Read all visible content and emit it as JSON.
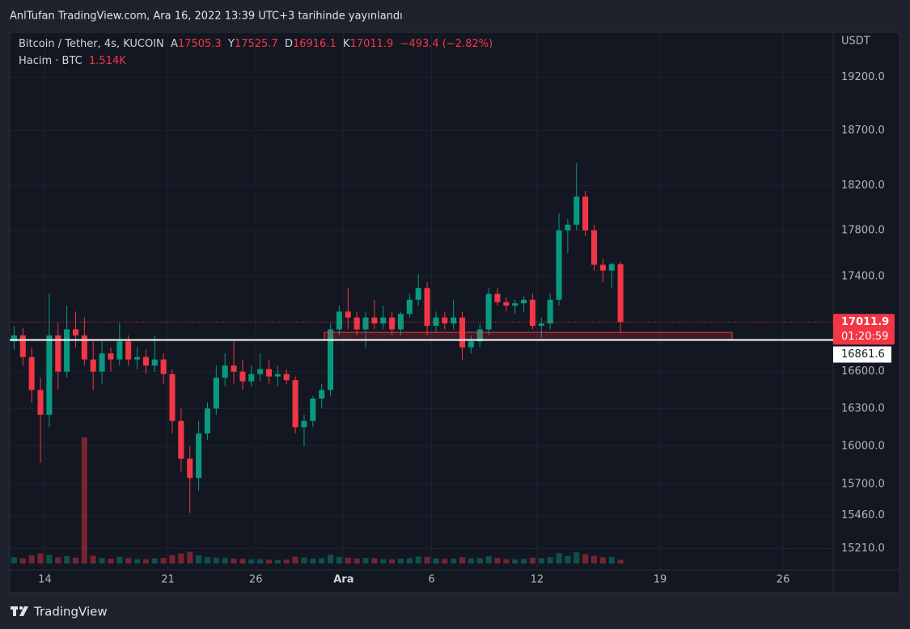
{
  "header": {
    "title": "AnlTufan TradingView.com, Ara 16, 2022 13:39 UTC+3 tarihinde yayınlandı"
  },
  "footer": {
    "brand": "TradingView"
  },
  "chart_data": {
    "type": "candlestick",
    "legend": {
      "symbol": "Bitcoin / Tether, 4s, KUCOIN",
      "open_label": "A",
      "open": 17505.3,
      "high_label": "Y",
      "high": 17525.7,
      "low_label": "D",
      "low": 16916.1,
      "close_label": "K",
      "close": 17011.9,
      "change": "−493.4 (−2.82%)",
      "volume_label": "Hacim · BTC",
      "volume_value": "1.514K"
    },
    "y_unit": "USDT",
    "log_scale": true,
    "ylim": [
      15050,
      19630
    ],
    "yticks": [
      {
        "value": 19200,
        "label": "19200.0"
      },
      {
        "value": 18700,
        "label": "18700.0"
      },
      {
        "value": 18200,
        "label": "18200.0"
      },
      {
        "value": 17800,
        "label": "17800.0"
      },
      {
        "value": 17400,
        "label": "17400.0"
      },
      {
        "value": 16600,
        "label": "16600.0"
      },
      {
        "value": 16300,
        "label": "16300.0"
      },
      {
        "value": 16000,
        "label": "16000.0"
      },
      {
        "value": 15700,
        "label": "15700.0"
      },
      {
        "value": 15460,
        "label": "15460.0"
      },
      {
        "value": 15210,
        "label": "15210.0"
      }
    ],
    "xlim": [
      -2,
      44.85
    ],
    "xticks": [
      {
        "value": 0,
        "label": "14"
      },
      {
        "value": 7,
        "label": "21"
      },
      {
        "value": 12,
        "label": "26"
      },
      {
        "value": 17,
        "label": "Ara"
      },
      {
        "value": 22,
        "label": "6"
      },
      {
        "value": 28,
        "label": "12"
      },
      {
        "value": 35,
        "label": "19"
      },
      {
        "value": 42,
        "label": "26"
      }
    ],
    "grid": true,
    "up_color": "#089981",
    "down_color": "#f23645",
    "last_price": 17011.9,
    "countdown": "01:20:59",
    "level": 16861.6,
    "zone": {
      "x": [
        15.9,
        39.1
      ],
      "y": [
        16865,
        16925
      ]
    },
    "vlim": [
      0,
      60000
    ],
    "candles": {
      "x": [
        -1.75,
        -1.25,
        -0.75,
        -0.25,
        0.25,
        0.75,
        1.25,
        1.75,
        2.25,
        2.75,
        3.25,
        3.75,
        4.25,
        4.75,
        5.25,
        5.75,
        6.25,
        6.75,
        7.25,
        7.75,
        8.25,
        8.75,
        9.25,
        9.75,
        10.25,
        10.75,
        11.25,
        11.75,
        12.25,
        12.75,
        13.25,
        13.75,
        14.25,
        14.75,
        15.25,
        15.75,
        16.25,
        16.75,
        17.25,
        17.75,
        18.25,
        18.75,
        19.25,
        19.75,
        20.25,
        20.75,
        21.25,
        21.75,
        22.25,
        22.75,
        23.25,
        23.75,
        24.25,
        24.75,
        25.25,
        25.75,
        26.25,
        26.75,
        27.25,
        27.75,
        28.25,
        28.75,
        29.25,
        29.75,
        30.25,
        30.75,
        31.25,
        31.75,
        32.25,
        32.75
      ],
      "open": [
        16850,
        16900,
        16720,
        16450,
        16250,
        16900,
        16600,
        16950,
        16900,
        16700,
        16600,
        16750,
        16700,
        16850,
        16700,
        16720,
        16650,
        16700,
        16580,
        16200,
        15900,
        15750,
        16100,
        16300,
        16550,
        16650,
        16600,
        16520,
        16580,
        16620,
        16560,
        16580,
        16530,
        16150,
        16200,
        16380,
        16450,
        16950,
        17100,
        17050,
        16950,
        17050,
        17000,
        17050,
        16950,
        17080,
        17200,
        17300,
        16980,
        17050,
        17000,
        17050,
        16800,
        16850,
        16950,
        17250,
        17180,
        17150,
        17170,
        17200,
        16980,
        17000,
        17200,
        17800,
        17850,
        18100,
        17800,
        17500,
        17450,
        17505.3
      ],
      "high": [
        16980,
        16960,
        16800,
        16550,
        17250,
        17000,
        17150,
        17100,
        17050,
        16850,
        16850,
        16800,
        17000,
        16900,
        16800,
        16780,
        16900,
        16750,
        16620,
        16300,
        16000,
        16200,
        16350,
        16650,
        16750,
        16850,
        16700,
        16650,
        16750,
        16700,
        16650,
        16620,
        16560,
        16250,
        16400,
        16500,
        17000,
        17150,
        17300,
        17100,
        17100,
        17200,
        17150,
        17100,
        17100,
        17250,
        17420,
        17350,
        17100,
        17100,
        17200,
        17100,
        16900,
        17000,
        17300,
        17300,
        17220,
        17200,
        17230,
        17250,
        17050,
        17250,
        17950,
        17900,
        18400,
        18150,
        17850,
        17550,
        17520,
        17525.7
      ],
      "low": [
        16780,
        16650,
        16350,
        15870,
        16150,
        16450,
        16550,
        16800,
        16650,
        16450,
        16500,
        16600,
        16650,
        16650,
        16620,
        16580,
        16600,
        16500,
        16100,
        15800,
        15480,
        15650,
        16050,
        16250,
        16480,
        16500,
        16450,
        16480,
        16520,
        16500,
        16480,
        16500,
        16100,
        16000,
        16150,
        16300,
        16400,
        16900,
        16950,
        16900,
        16800,
        16950,
        16950,
        16900,
        16900,
        17050,
        17150,
        16900,
        16920,
        16950,
        16950,
        16700,
        16750,
        16800,
        16900,
        17150,
        17100,
        17080,
        17100,
        16950,
        16880,
        16950,
        17150,
        17600,
        17800,
        17750,
        17450,
        17350,
        17300,
        16916.1
      ],
      "close": [
        16900,
        16720,
        16450,
        16250,
        16900,
        16600,
        16950,
        16900,
        16700,
        16600,
        16750,
        16700,
        16850,
        16700,
        16720,
        16650,
        16700,
        16580,
        16200,
        15900,
        15750,
        16100,
        16300,
        16550,
        16650,
        16600,
        16520,
        16580,
        16620,
        16560,
        16580,
        16530,
        16150,
        16200,
        16380,
        16450,
        16950,
        17100,
        17050,
        16950,
        17050,
        17000,
        17050,
        16950,
        17080,
        17200,
        17300,
        16980,
        17050,
        17000,
        17050,
        16800,
        16850,
        16950,
        17250,
        17180,
        17150,
        17170,
        17200,
        16980,
        17000,
        17200,
        17800,
        17850,
        18100,
        17800,
        17500,
        17450,
        17505.3,
        17011.9
      ],
      "volume": [
        2600,
        2200,
        3400,
        4200,
        3600,
        2500,
        3000,
        2400,
        52000,
        3200,
        2300,
        2000,
        2700,
        2200,
        1800,
        1700,
        2100,
        2300,
        3500,
        4100,
        4800,
        3300,
        2600,
        2400,
        2200,
        2000,
        1900,
        1700,
        1800,
        1600,
        1500,
        1600,
        2800,
        2500,
        2100,
        2200,
        3600,
        2800,
        2400,
        2100,
        2300,
        2200,
        1800,
        1700,
        2000,
        2200,
        2900,
        2700,
        2100,
        1900,
        2000,
        2600,
        2100,
        2200,
        3000,
        2300,
        1800,
        1700,
        1900,
        2400,
        2200,
        2600,
        4300,
        3100,
        4600,
        3800,
        3200,
        2600,
        2700,
        1514
      ]
    }
  }
}
